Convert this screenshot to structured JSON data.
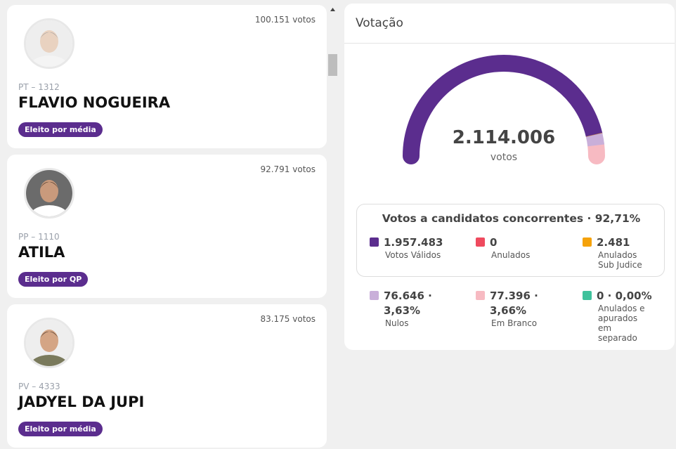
{
  "candidates": [
    {
      "votes": "100.151 votos",
      "party": "PT – 1312",
      "name": "FLAVIO NOGUEIRA",
      "badge": "Eleito por média"
    },
    {
      "votes": "92.791 votos",
      "party": "PP – 1110",
      "name": "ATILA",
      "badge": "Eleito por QP"
    },
    {
      "votes": "83.175 votos",
      "party": "PV – 4333",
      "name": "JADYEL DA JUPI",
      "badge": "Eleito por média"
    }
  ],
  "panel": {
    "title": "Votação",
    "total": "2.114.006",
    "total_label": "votos",
    "summary": "Votos a candidatos concorrentes · 92,71%",
    "items": [
      {
        "value": "1.957.483",
        "label": "Votos Válidos",
        "color": "#5b2d8e"
      },
      {
        "value": "0",
        "label": "Anulados",
        "color": "#ef4a5e"
      },
      {
        "value": "2.481",
        "label": "Anulados Sub Judice",
        "color": "#f5a20a"
      },
      {
        "value": "76.646 · 3,63%",
        "label": "Nulos",
        "color": "#c9afd9"
      },
      {
        "value": "77.396 · 3,66%",
        "label": "Em Branco",
        "color": "#f7bac2"
      },
      {
        "value": "0 · 0,00%",
        "label": "Anulados e apurados em separado",
        "color": "#3fc29c"
      }
    ]
  }
}
